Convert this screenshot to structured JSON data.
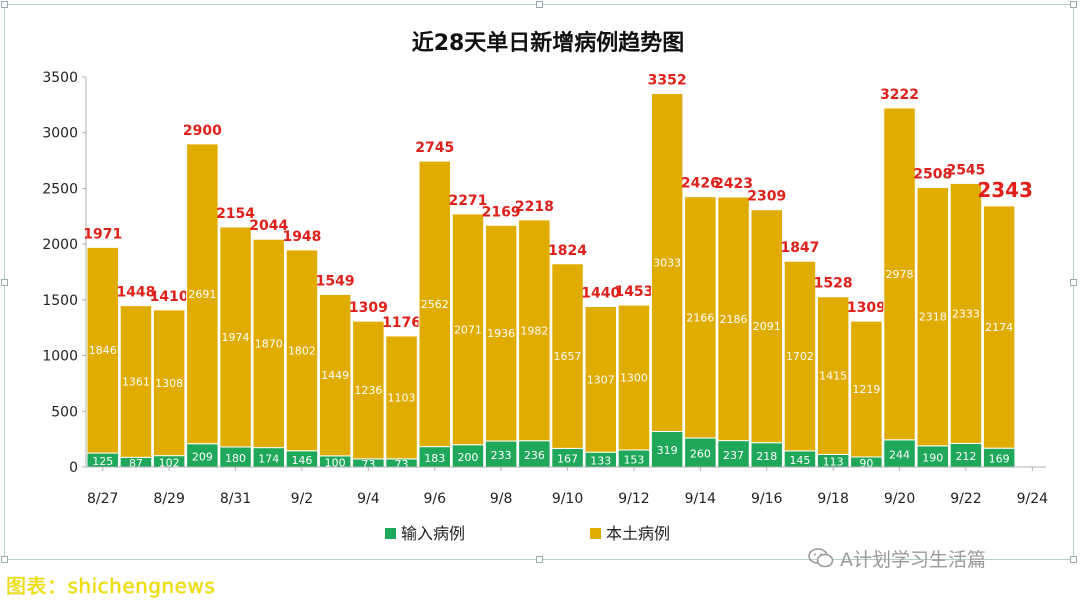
{
  "chart_data": {
    "type": "bar",
    "stacked": true,
    "title": "近28天单日新增病例趋势图",
    "categories": [
      "8/27",
      "8/28",
      "8/29",
      "8/30",
      "8/31",
      "9/1",
      "9/2",
      "9/3",
      "9/4",
      "9/5",
      "9/6",
      "9/7",
      "9/8",
      "9/9",
      "9/10",
      "9/11",
      "9/12",
      "9/13",
      "9/14",
      "9/15",
      "9/16",
      "9/17",
      "9/18",
      "9/19",
      "9/20",
      "9/21",
      "9/22",
      "9/23"
    ],
    "x_tick_labels": [
      "8/27",
      "8/29",
      "8/31",
      "9/2",
      "9/4",
      "9/6",
      "9/8",
      "9/10",
      "9/12",
      "9/14",
      "9/16",
      "9/18",
      "9/20",
      "9/22",
      "9/24"
    ],
    "series": [
      {
        "name": "输入病例",
        "color": "#1fa85a",
        "values": [
          125,
          87,
          102,
          209,
          180,
          174,
          146,
          100,
          73,
          73,
          183,
          200,
          233,
          236,
          167,
          133,
          153,
          319,
          260,
          237,
          218,
          145,
          113,
          90,
          244,
          190,
          212,
          169
        ]
      },
      {
        "name": "本土病例",
        "color": "#e0ac00",
        "values": [
          1846,
          1361,
          1308,
          2691,
          1974,
          1870,
          1802,
          1449,
          1236,
          1103,
          2562,
          2071,
          1936,
          1982,
          1657,
          1307,
          1300,
          3033,
          2166,
          2186,
          2091,
          1702,
          1415,
          1219,
          2978,
          2318,
          2333,
          2174
        ]
      }
    ],
    "totals": [
      1971,
      1448,
      1410,
      2900,
      2154,
      2044,
      1948,
      1549,
      1309,
      1176,
      2745,
      2271,
      2169,
      2218,
      1824,
      1440,
      1453,
      3352,
      2426,
      2423,
      2309,
      1847,
      1528,
      1309,
      3222,
      2508,
      2545,
      2343
    ],
    "ylim": [
      0,
      3500
    ],
    "yticks": [
      0,
      500,
      1000,
      1500,
      2000,
      2500,
      3000,
      3500
    ],
    "xlabel": "",
    "ylabel": "",
    "legend_position": "bottom",
    "grid": false,
    "label_color": "#e0201a"
  },
  "watermark": {
    "text": "A计划学习生活篇",
    "icon": "wechat-icon"
  },
  "source_note": "图表：shichengnews"
}
